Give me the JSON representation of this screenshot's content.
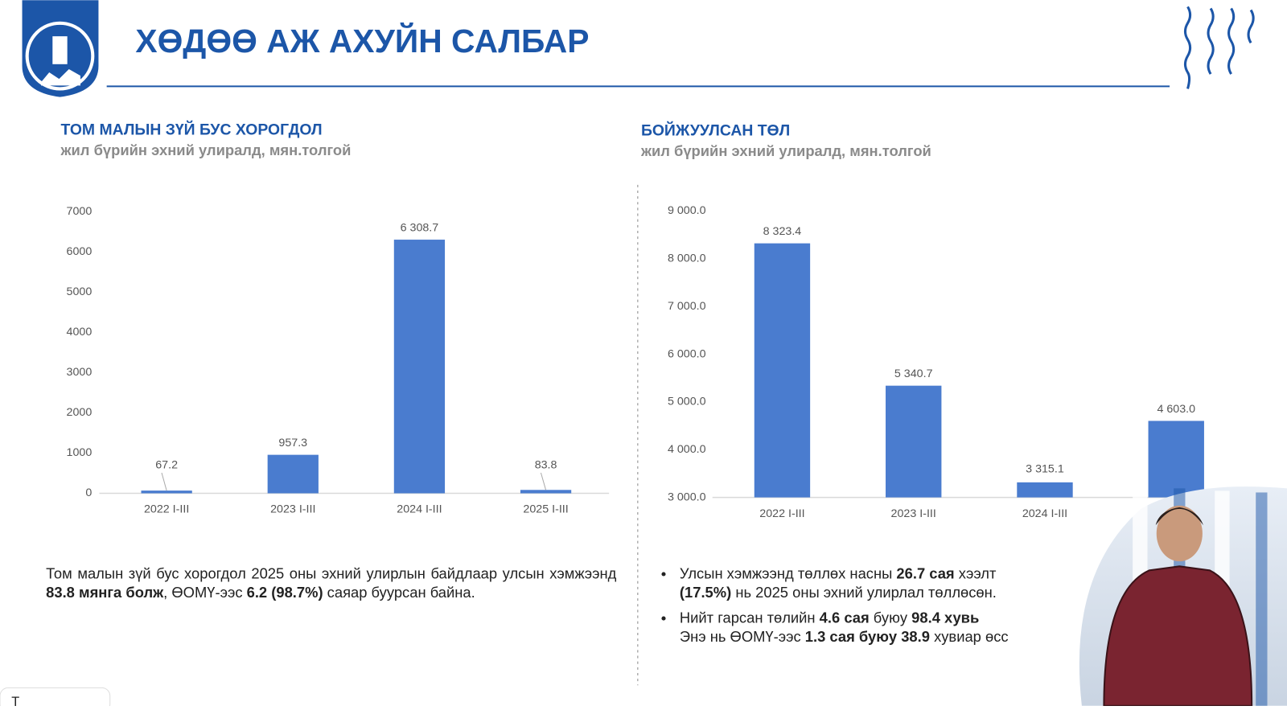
{
  "header": {
    "title": "ХӨДӨӨ АЖ АХУЙН САЛБАР"
  },
  "chart_data": [
    {
      "type": "bar",
      "title": "ТОМ МАЛЫН ЗҮЙ БУС ХОРОГДОЛ",
      "subtitle": "жил бүрийн эхний улиралд, мян.толгой",
      "categories": [
        "2022 I-III",
        "2023 I-III",
        "2024 I-III",
        "2025 I-III"
      ],
      "values": [
        67.2,
        957.3,
        6308.7,
        83.8
      ],
      "value_labels": [
        "67.2",
        "957.3",
        "6 308.7",
        "83.8"
      ],
      "color": "#4a7ccf",
      "ylim": [
        0,
        7000
      ],
      "yticks": [
        0,
        1000,
        2000,
        3000,
        4000,
        5000,
        6000,
        7000
      ],
      "grid": false
    },
    {
      "type": "bar",
      "title": "БОЙЖУУЛСАН ТӨЛ",
      "subtitle": "жил бүрийн эхний улиралд, мян.толгой",
      "categories": [
        "2022 I-III",
        "2023 I-III",
        "2024 I-III",
        null
      ],
      "values": [
        8323.4,
        5340.7,
        3315.1,
        4603.0
      ],
      "value_labels": [
        "8 323.4",
        "5 340.7",
        "3 315.1",
        "4 603.0"
      ],
      "color": "#4a7ccf",
      "ylim": [
        3000,
        9000
      ],
      "yticks": [
        {
          "value": 3000,
          "label": "3 000.0"
        },
        {
          "value": 4000,
          "label": "4 000.0"
        },
        {
          "value": 5000,
          "label": "5 000.0"
        },
        {
          "value": 6000,
          "label": "6 000.0"
        },
        {
          "value": 7000,
          "label": "7 000.0"
        },
        {
          "value": 8000,
          "label": "8 000.0"
        },
        {
          "value": 9000,
          "label": "9 000.0"
        }
      ],
      "grid": false
    }
  ],
  "left_text": [
    {
      "text": "Том малын зүй бус хорогдол 2025 оны эхний улирлын байдлаар улсын хэмжээнд ",
      "bold": false
    },
    {
      "text": "83.8 мянга болж",
      "bold": true
    },
    {
      "text": ", ӨОМҮ-ээс ",
      "bold": false
    },
    {
      "text": "6.2 (98.7%)",
      "bold": true
    },
    {
      "text": " саяар буурсан байна.",
      "bold": false
    }
  ],
  "right_bullets": [
    [
      [
        {
          "text": "Улсын хэмжээнд төллөх насны ",
          "bold": false
        },
        {
          "text": "26.7 сая",
          "bold": true
        },
        {
          "text": " хээлт",
          "bold": false
        }
      ],
      [
        {
          "text": "(17.5%)",
          "bold": true
        },
        {
          "text": " нь 2025 оны эхний улирлал төллөсөн.",
          "bold": false
        }
      ]
    ],
    [
      [
        {
          "text": "Нийт гарсан төлийн ",
          "bold": false
        },
        {
          "text": "4.6 сая",
          "bold": true
        },
        {
          "text": " буюу ",
          "bold": false
        },
        {
          "text": "98.4 хувь",
          "bold": true
        }
      ],
      [
        {
          "text": "Энэ нь ӨОМҮ-ээс ",
          "bold": false
        },
        {
          "text": "1.3 сая буюу 38.9",
          "bold": true
        },
        {
          "text": " хувиар өсс",
          "bold": false
        }
      ]
    ]
  ],
  "corner_fragment": "T"
}
